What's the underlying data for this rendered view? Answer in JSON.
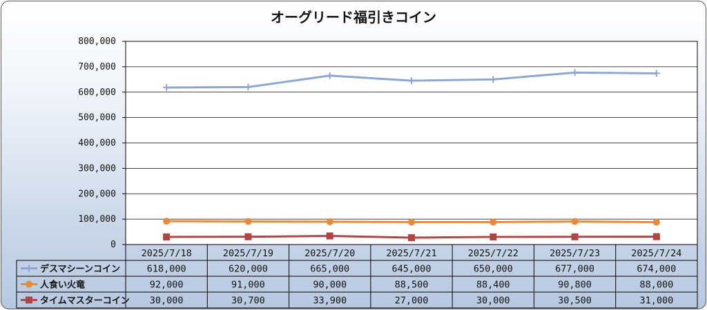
{
  "chart_data": {
    "type": "line",
    "title": "オーグリード福引きコイン",
    "xlabel": "",
    "ylabel": "",
    "ylim": [
      0,
      800000
    ],
    "y_ticks": [
      "0",
      "100,000",
      "200,000",
      "300,000",
      "400,000",
      "500,000",
      "600,000",
      "700,000",
      "800,000"
    ],
    "categories": [
      "2025/7/18",
      "2025/7/19",
      "2025/7/20",
      "2025/7/21",
      "2025/7/22",
      "2025/7/23",
      "2025/7/24"
    ],
    "grid": true,
    "legend": "data-table",
    "series": [
      {
        "name": "デスマシーンコイン",
        "color": "#8ea7cf",
        "marker": "plus",
        "values": [
          618000,
          620000,
          665000,
          645000,
          650000,
          677000,
          674000
        ],
        "labels": [
          "618,000",
          "620,000",
          "665,000",
          "645,000",
          "650,000",
          "677,000",
          "674,000"
        ]
      },
      {
        "name": "人食い火竜",
        "color": "#e6893a",
        "marker": "circle",
        "values": [
          92000,
          91000,
          90000,
          88500,
          88400,
          90800,
          88000
        ],
        "labels": [
          "92,000",
          "91,000",
          "90,000",
          "88,500",
          "88,400",
          "90,800",
          "88,000"
        ]
      },
      {
        "name": "タイムマスターコイン",
        "color": "#b04545",
        "marker": "square",
        "values": [
          30000,
          30700,
          33900,
          27000,
          30000,
          30500,
          31000
        ],
        "labels": [
          "30,000",
          "30,700",
          "33,900",
          "27,000",
          "30,000",
          "30,500",
          "31,000"
        ]
      }
    ]
  }
}
